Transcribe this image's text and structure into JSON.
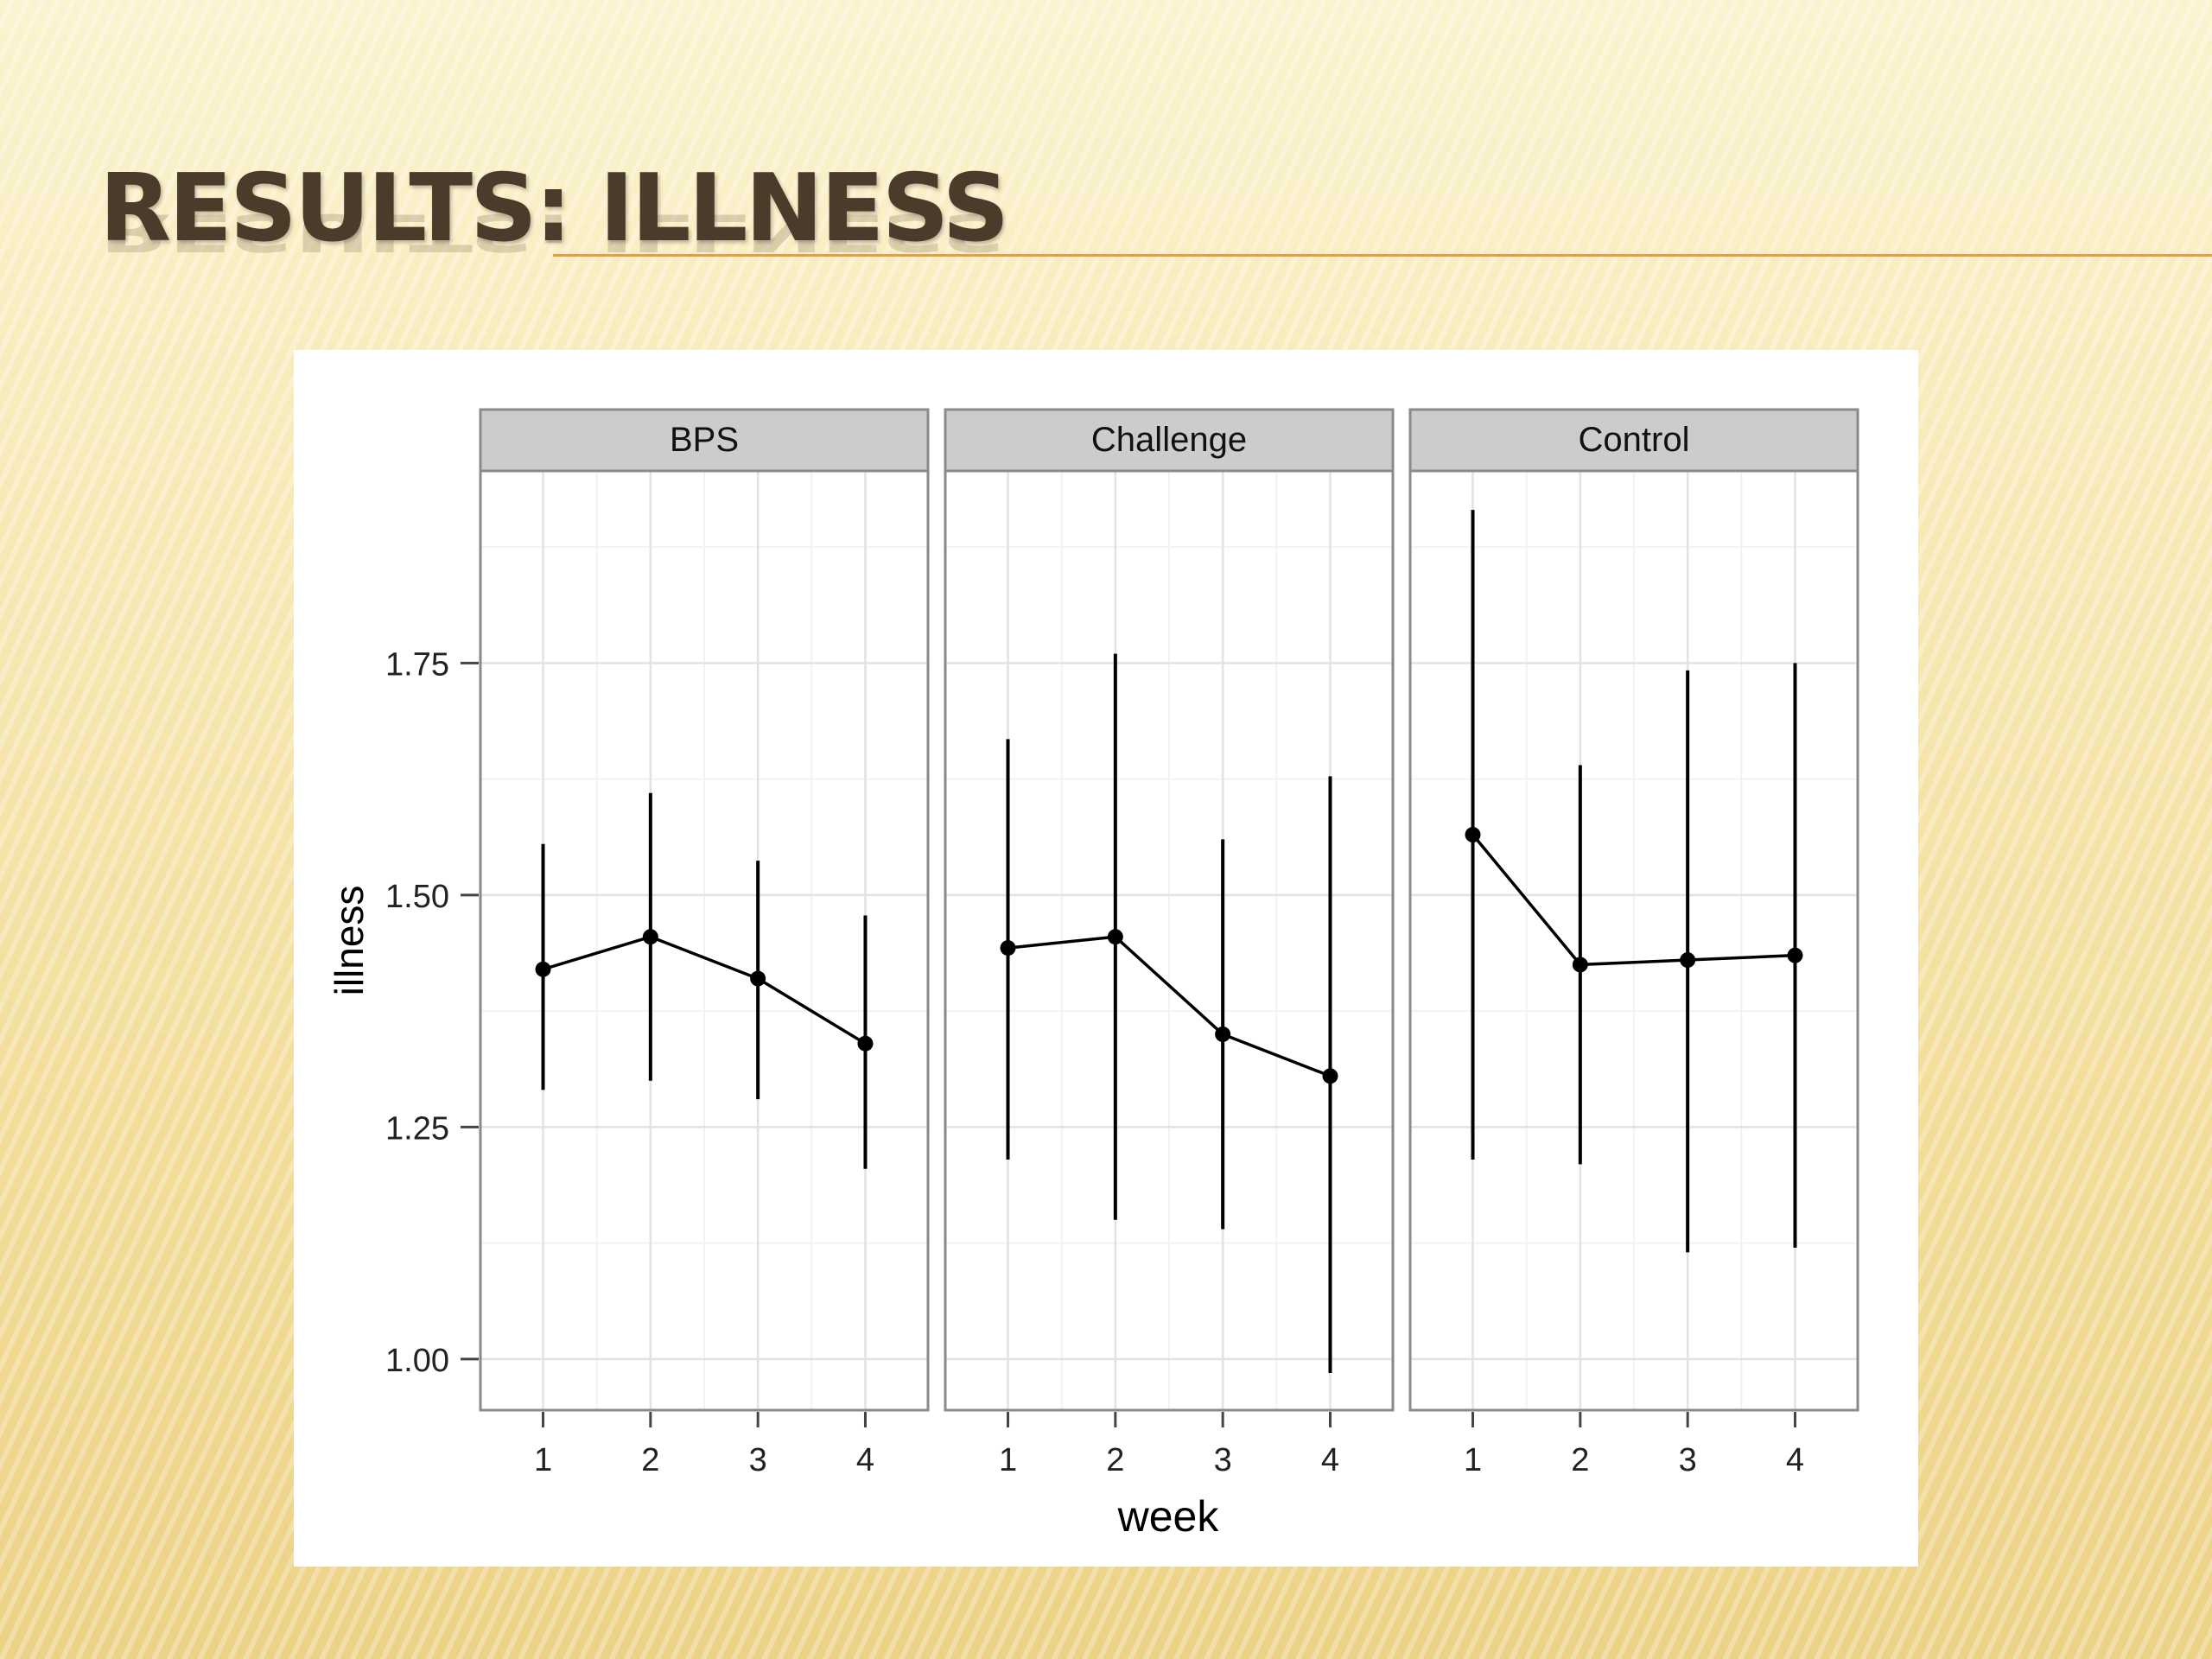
{
  "slide": {
    "title": "RESULTS: ILLNESS"
  },
  "colors": {
    "accent_rule": "#e0a23a",
    "title_text": "#4b3b2a",
    "strip_fill": "#cccccc",
    "data_mark": "#000000"
  },
  "chart_data": {
    "type": "line",
    "facets": [
      "BPS",
      "Challenge",
      "Control"
    ],
    "xlabel": "week",
    "ylabel": "illness",
    "x_ticks": [
      "1",
      "2",
      "3",
      "4"
    ],
    "y_ticks": [
      "1.00",
      "1.25",
      "1.50",
      "1.75"
    ],
    "ylim": [
      0.945,
      1.957
    ],
    "grid": true,
    "panels": [
      {
        "name": "BPS",
        "x": [
          1,
          2,
          3,
          4
        ],
        "mean": [
          1.42,
          1.455,
          1.41,
          1.34
        ],
        "lower": [
          1.29,
          1.3,
          1.28,
          1.205
        ],
        "upper": [
          1.555,
          1.61,
          1.537,
          1.478
        ]
      },
      {
        "name": "Challenge",
        "x": [
          1,
          2,
          3,
          4
        ],
        "mean": [
          1.443,
          1.455,
          1.35,
          1.305
        ],
        "lower": [
          1.215,
          1.15,
          1.14,
          0.985
        ],
        "upper": [
          1.668,
          1.76,
          1.56,
          1.628
        ]
      },
      {
        "name": "Control",
        "x": [
          1,
          2,
          3,
          4
        ],
        "mean": [
          1.565,
          1.425,
          1.43,
          1.435
        ],
        "lower": [
          1.215,
          1.21,
          1.115,
          1.12
        ],
        "upper": [
          1.915,
          1.64,
          1.742,
          1.75
        ]
      }
    ]
  }
}
